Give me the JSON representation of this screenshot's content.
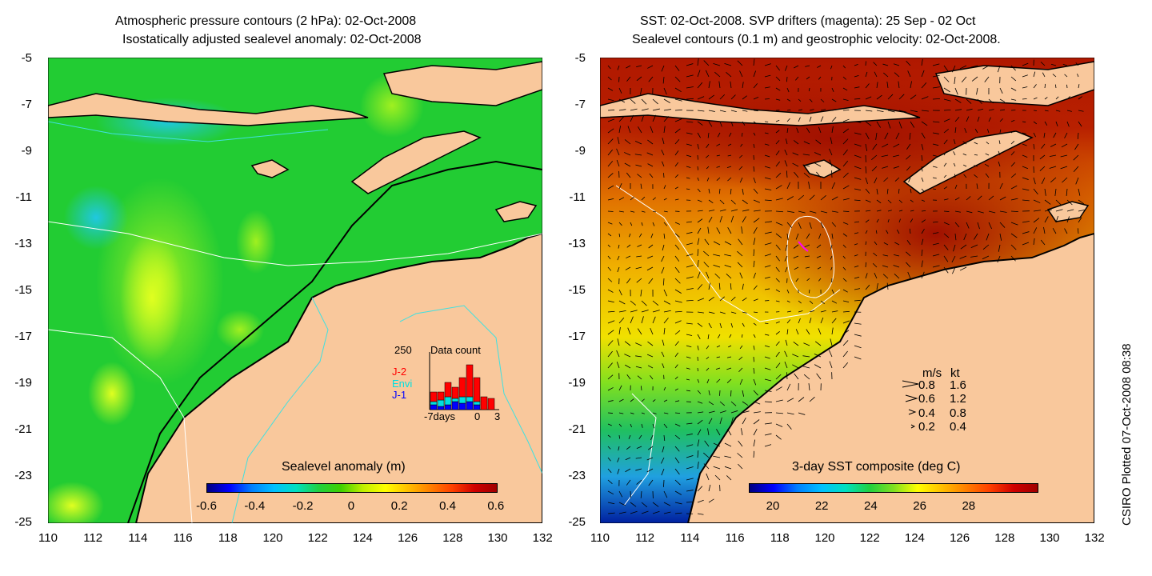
{
  "left_panel": {
    "title_line1": "Atmospheric pressure contours (2 hPa): 02-Oct-2008",
    "title_line2": "Isostatically adjusted sealevel anomaly: 02-Oct-2008",
    "colorbar_label": "Sealevel anomaly (m)",
    "colorbar_ticks": [
      "-0.6",
      "-0.4",
      "-0.2",
      "0",
      "0.2",
      "0.4",
      "0.6"
    ],
    "inset": {
      "title": "Data count",
      "ymax_label": "250",
      "x_label_start": "-7days",
      "x_label_zero": "0",
      "x_label_end": "3",
      "legend": [
        {
          "name": "J-2",
          "color": "#ff0000"
        },
        {
          "name": "Envi",
          "color": "#00e0e0"
        },
        {
          "name": "J-1",
          "color": "#0000ff"
        }
      ]
    }
  },
  "right_panel": {
    "title_line1": "SST: 02-Oct-2008. SVP drifters (magenta): 25 Sep - 02 Oct",
    "title_line2": "Sealevel contours (0.1 m) and geostrophic velocity: 02-Oct-2008.",
    "colorbar_label": "3-day SST composite (deg C)",
    "colorbar_ticks": [
      "20",
      "22",
      "24",
      "26",
      "28"
    ],
    "velocity_legend": {
      "header_ms": "m/s",
      "header_kt": "kt",
      "rows": [
        {
          "ms": "0.8",
          "kt": "1.6"
        },
        {
          "ms": "0.6",
          "kt": "1.2"
        },
        {
          "ms": "0.4",
          "kt": "0.8"
        },
        {
          "ms": "0.2",
          "kt": "0.4"
        }
      ]
    }
  },
  "axes": {
    "y_ticks": [
      "-5",
      "-7",
      "-9",
      "-11",
      "-13",
      "-15",
      "-17",
      "-19",
      "-21",
      "-23",
      "-25"
    ],
    "x_ticks": [
      "110",
      "112",
      "114",
      "116",
      "118",
      "120",
      "122",
      "124",
      "126",
      "128",
      "130",
      "132"
    ]
  },
  "credit": "CSIRO Plotted 07-Oct-2008 08:38",
  "colors": {
    "land": "#f9c89c",
    "sla_background": "#22cc33",
    "sst_warm": "#b01800",
    "contour_cyan": "#40e0e0"
  }
}
